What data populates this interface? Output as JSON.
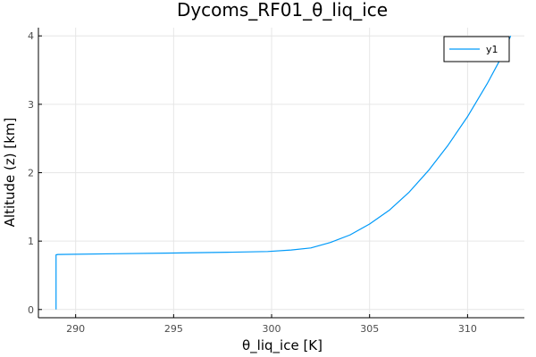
{
  "chart_data": {
    "type": "line",
    "title": "Dycoms_RF01_θ_liq_ice",
    "xlabel": "θ_liq_ice [K]",
    "ylabel": "Altitude (z) [km]",
    "xlim": [
      288.1,
      312.9
    ],
    "ylim": [
      -0.12,
      4.12
    ],
    "xticks": [
      290,
      295,
      300,
      305,
      310
    ],
    "yticks": [
      0,
      1,
      2,
      3,
      4
    ],
    "grid": true,
    "legend_position": "top-right",
    "series": [
      {
        "name": "y1",
        "color": "#009af9",
        "x": [
          289.0,
          289.0,
          289.0,
          289.1,
          292.0,
          295.0,
          298.0,
          299.8,
          301.0,
          302.0,
          303.0,
          304.0,
          305.0,
          306.0,
          307.0,
          308.0,
          309.0,
          310.0,
          311.0,
          311.6,
          312.2
        ],
        "y": [
          0.0,
          0.4,
          0.8,
          0.805,
          0.815,
          0.826,
          0.838,
          0.848,
          0.87,
          0.9,
          0.98,
          1.09,
          1.25,
          1.45,
          1.71,
          2.03,
          2.4,
          2.82,
          3.3,
          3.62,
          4.0
        ]
      }
    ]
  }
}
